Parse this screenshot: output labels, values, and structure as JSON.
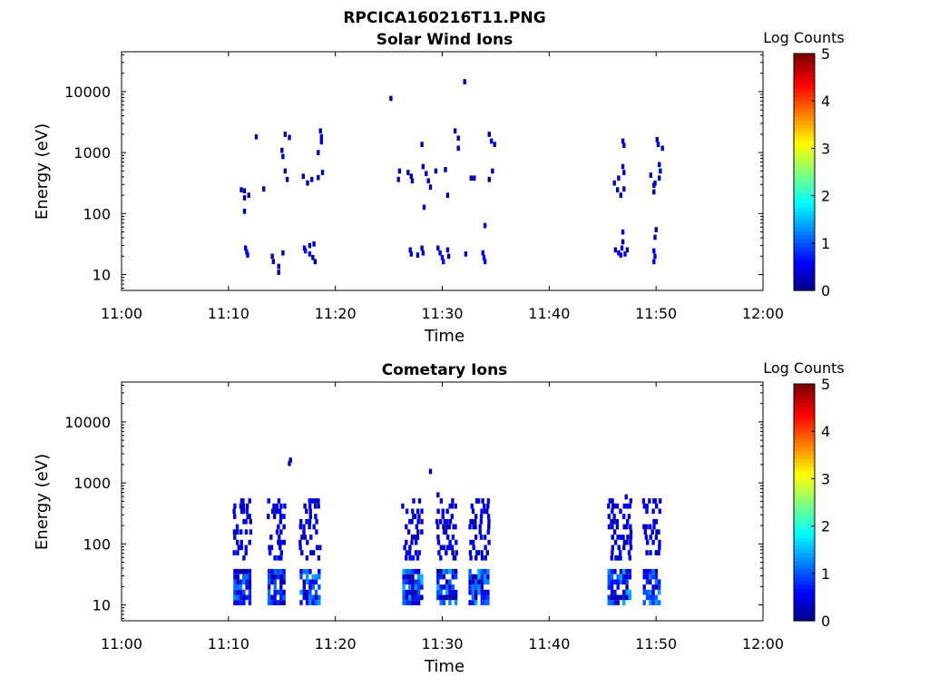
{
  "figure": {
    "title": "RPCICA160216T11.PNG"
  },
  "chart_data": [
    {
      "type": "heatmap",
      "title": "Solar Wind Ions",
      "xlabel": "Time",
      "ylabel": "Energy (eV)",
      "xticks": [
        "11:00",
        "11:10",
        "11:20",
        "11:30",
        "11:40",
        "11:50",
        "12:00"
      ],
      "xlim": [
        "11:00",
        "12:00"
      ],
      "yticks": [
        {
          "value": 10,
          "label": "10"
        },
        {
          "value": 100,
          "label": "100"
        },
        {
          "value": 1000,
          "label": "1000"
        },
        {
          "value": 10000,
          "label": "10000"
        }
      ],
      "ylim": [
        5.5,
        45000
      ],
      "yscale": "log",
      "colorbar": {
        "label": "Log Counts",
        "range": [
          0,
          5
        ],
        "ticks": [
          "0",
          "1",
          "2",
          "3",
          "4",
          "5"
        ],
        "colormap": "jet"
      },
      "cells": [
        [
          11.2,
          270,
          0.2
        ],
        [
          11.5,
          260,
          0.2
        ],
        [
          11.9,
          220,
          0.2
        ],
        [
          11.5,
          200,
          0.2
        ],
        [
          11.5,
          120,
          0.2
        ],
        [
          12.6,
          2000,
          0.2
        ],
        [
          13.3,
          280,
          0.2
        ],
        [
          15.3,
          2200,
          0.2
        ],
        [
          15.7,
          1950,
          0.2
        ],
        [
          15.0,
          1200,
          0.2
        ],
        [
          15.1,
          950,
          0.2
        ],
        [
          15.3,
          550,
          0.2
        ],
        [
          15.5,
          400,
          0.2
        ],
        [
          17.0,
          450,
          0.2
        ],
        [
          17.4,
          350,
          0.2
        ],
        [
          17.8,
          400,
          0.2
        ],
        [
          18.4,
          430,
          0.2
        ],
        [
          18.8,
          520,
          0.3
        ],
        [
          18.6,
          2500,
          0.2
        ],
        [
          18.7,
          2000,
          0.4
        ],
        [
          18.7,
          1650,
          0.4
        ],
        [
          18.4,
          1100,
          0.2
        ],
        [
          11.6,
          30,
          0.5
        ],
        [
          11.7,
          26,
          0.6
        ],
        [
          11.8,
          23,
          0.5
        ],
        [
          14.1,
          22,
          0.2
        ],
        [
          14.2,
          18,
          0.2
        ],
        [
          14.7,
          15,
          0.2
        ],
        [
          14.7,
          12,
          0.2
        ],
        [
          15.1,
          25,
          0.3
        ],
        [
          17.1,
          30,
          0.4
        ],
        [
          17.2,
          27,
          0.5
        ],
        [
          17.6,
          24,
          0.4
        ],
        [
          17.9,
          21,
          0.3
        ],
        [
          18.0,
          35,
          0.4
        ],
        [
          18.1,
          18,
          0.2
        ],
        [
          17.6,
          33,
          0.3
        ],
        [
          25.2,
          8500,
          0.2
        ],
        [
          32.1,
          16000,
          0.2
        ],
        [
          26.0,
          550,
          0.2
        ],
        [
          25.9,
          400,
          0.2
        ],
        [
          26.8,
          520,
          0.2
        ],
        [
          27.1,
          450,
          0.2
        ],
        [
          27.2,
          380,
          0.2
        ],
        [
          28.1,
          1500,
          0.2
        ],
        [
          28.2,
          650,
          0.2
        ],
        [
          28.5,
          500,
          0.2
        ],
        [
          28.7,
          380,
          0.2
        ],
        [
          28.9,
          300,
          0.2
        ],
        [
          28.3,
          140,
          0.3
        ],
        [
          29.4,
          550,
          0.2
        ],
        [
          30.3,
          580,
          0.2
        ],
        [
          30.5,
          220,
          0.2
        ],
        [
          31.2,
          2500,
          0.2
        ],
        [
          31.5,
          1900,
          0.2
        ],
        [
          31.5,
          1300,
          0.2
        ],
        [
          32.7,
          420,
          0.2
        ],
        [
          33.0,
          420,
          0.2
        ],
        [
          34.4,
          2200,
          0.2
        ],
        [
          34.6,
          1700,
          0.4
        ],
        [
          34.9,
          1500,
          0.3
        ],
        [
          34.7,
          550,
          0.2
        ],
        [
          34.4,
          400,
          0.2
        ],
        [
          34.0,
          70,
          0.4
        ],
        [
          27.0,
          28,
          0.4
        ],
        [
          27.1,
          24,
          0.3
        ],
        [
          27.7,
          23,
          0.3
        ],
        [
          28.1,
          30,
          0.2
        ],
        [
          28.2,
          25,
          0.3
        ],
        [
          29.6,
          30,
          0.4
        ],
        [
          29.8,
          25,
          0.5
        ],
        [
          30.0,
          21,
          0.6
        ],
        [
          30.1,
          18,
          0.5
        ],
        [
          30.5,
          28,
          0.3
        ],
        [
          30.6,
          22,
          0.2
        ],
        [
          32.2,
          24,
          0.2
        ],
        [
          33.8,
          25,
          0.5
        ],
        [
          33.9,
          21,
          0.6
        ],
        [
          34.0,
          18,
          0.5
        ],
        [
          46.1,
          350,
          0.2
        ],
        [
          46.4,
          270,
          0.2
        ],
        [
          46.7,
          220,
          0.2
        ],
        [
          47.0,
          280,
          0.2
        ],
        [
          46.9,
          1700,
          0.4
        ],
        [
          47.0,
          1450,
          0.5
        ],
        [
          46.9,
          650,
          0.3
        ],
        [
          47.0,
          520,
          0.2
        ],
        [
          46.5,
          420,
          0.2
        ],
        [
          46.2,
          28,
          0.2
        ],
        [
          46.5,
          25,
          0.4
        ],
        [
          46.7,
          23,
          0.5
        ],
        [
          46.8,
          30,
          0.3
        ],
        [
          46.9,
          38,
          0.2
        ],
        [
          46.9,
          55,
          0.4
        ],
        [
          47.1,
          24,
          0.6
        ],
        [
          47.3,
          28,
          0.2
        ],
        [
          49.8,
          320,
          0.2
        ],
        [
          49.8,
          250,
          0.2
        ],
        [
          49.5,
          470,
          0.2
        ],
        [
          49.9,
          350,
          0.2
        ],
        [
          50.1,
          1800,
          0.3
        ],
        [
          50.2,
          1500,
          0.4
        ],
        [
          50.6,
          1300,
          0.2
        ],
        [
          50.3,
          700,
          0.3
        ],
        [
          50.4,
          550,
          0.2
        ],
        [
          50.3,
          420,
          0.2
        ],
        [
          50.0,
          60,
          0.3
        ],
        [
          49.8,
          27,
          0.4
        ],
        [
          49.9,
          22,
          0.5
        ],
        [
          49.8,
          18,
          0.4
        ],
        [
          49.9,
          45,
          0.2
        ]
      ]
    },
    {
      "type": "heatmap",
      "title": "Cometary Ions",
      "xlabel": "Time",
      "ylabel": "Energy (eV)",
      "xticks": [
        "11:00",
        "11:10",
        "11:20",
        "11:30",
        "11:40",
        "11:50",
        "12:00"
      ],
      "xlim": [
        "11:00",
        "12:00"
      ],
      "yticks": [
        {
          "value": 10,
          "label": "10"
        },
        {
          "value": 100,
          "label": "100"
        },
        {
          "value": 1000,
          "label": "1000"
        },
        {
          "value": 10000,
          "label": "10000"
        }
      ],
      "ylim": [
        5.5,
        45000
      ],
      "yscale": "log",
      "colorbar": {
        "label": "Log Counts",
        "range": [
          0,
          5
        ],
        "ticks": [
          "0",
          "1",
          "2",
          "3",
          "4",
          "5"
        ],
        "colormap": "jet"
      },
      "bursts": [
        {
          "x": [
            10.6,
            12.1
          ],
          "peak": 1.3
        },
        {
          "x": [
            13.8,
            15.4
          ],
          "peak": 1.2
        },
        {
          "x": [
            16.8,
            18.5
          ],
          "peak": 1.5
        },
        {
          "x": [
            26.4,
            28.1
          ],
          "peak": 1.5
        },
        {
          "x": [
            29.6,
            31.3
          ],
          "peak": 1.6
        },
        {
          "x": [
            32.6,
            34.4
          ],
          "peak": 1.6
        },
        {
          "x": [
            45.6,
            47.6
          ],
          "peak": 1.5
        },
        {
          "x": [
            48.9,
            50.5
          ],
          "peak": 1.4
        }
      ],
      "cells": [
        [
          15.8,
          2600,
          0.2
        ],
        [
          15.7,
          2300,
          0.2
        ],
        [
          28.9,
          1700,
          0.2
        ],
        [
          29.6,
          700,
          0.2
        ],
        [
          47.2,
          650,
          0.2
        ]
      ]
    }
  ]
}
